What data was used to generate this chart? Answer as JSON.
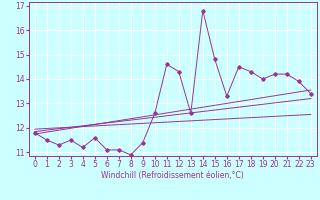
{
  "x_values": [
    0,
    1,
    2,
    3,
    4,
    5,
    6,
    7,
    8,
    9,
    10,
    11,
    12,
    13,
    14,
    15,
    16,
    17,
    18,
    19,
    20,
    21,
    22,
    23
  ],
  "y_main": [
    11.8,
    11.5,
    11.3,
    11.5,
    11.2,
    11.6,
    11.1,
    11.1,
    10.9,
    11.4,
    12.6,
    14.6,
    14.3,
    12.6,
    16.8,
    14.8,
    13.3,
    14.5,
    14.3,
    14.0,
    14.2,
    14.2,
    13.9,
    13.4
  ],
  "line_color": "#993399",
  "bg_color": "#ccffff",
  "grid_color": "#ffffff",
  "xlabel": "Windchill (Refroidissement éolien,°C)",
  "ylim": [
    10.85,
    17.15
  ],
  "xlim": [
    -0.5,
    23.5
  ],
  "yticks": [
    11,
    12,
    13,
    14,
    15,
    16,
    17
  ],
  "xticks": [
    0,
    1,
    2,
    3,
    4,
    5,
    6,
    7,
    8,
    9,
    10,
    11,
    12,
    13,
    14,
    15,
    16,
    17,
    18,
    19,
    20,
    21,
    22,
    23
  ],
  "reg_lines": [
    {
      "x0": 0,
      "y0": 11.75,
      "x1": 23,
      "y1": 13.55
    },
    {
      "x0": 0,
      "y0": 11.85,
      "x1": 23,
      "y1": 13.2
    },
    {
      "x0": 0,
      "y0": 11.95,
      "x1": 23,
      "y1": 12.55
    }
  ],
  "tick_fontsize": 5.5,
  "xlabel_fontsize": 5.5,
  "marker": "D",
  "markersize": 1.8,
  "linewidth": 0.7
}
